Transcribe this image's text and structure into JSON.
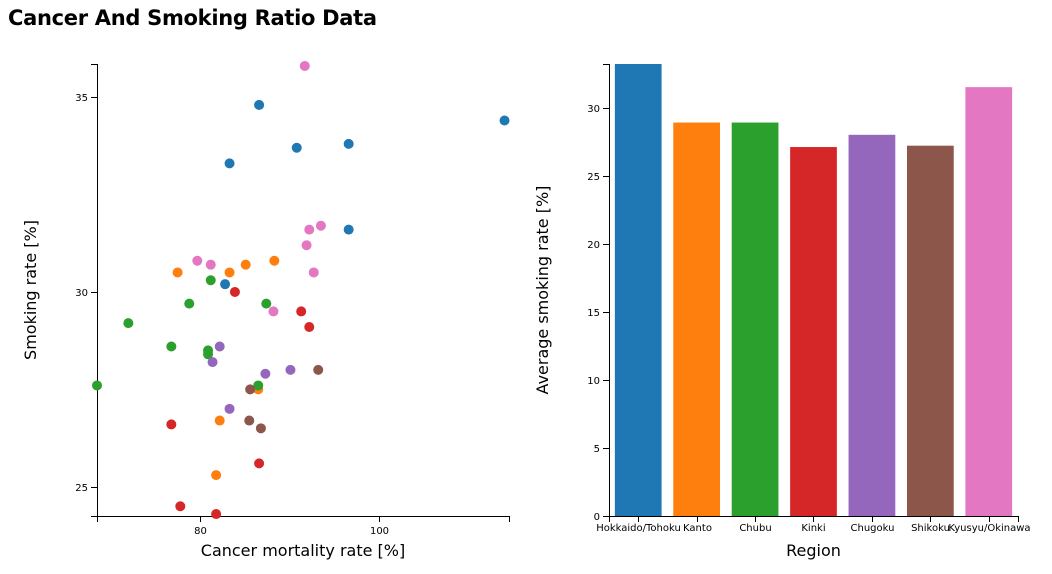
{
  "page": {
    "title": "Cancer And Smoking Ratio Data"
  },
  "chart_data": [
    {
      "type": "scatter",
      "xlabel": "Cancer mortality rate [%]",
      "ylabel": "Smoking rate [%]",
      "xlim": [
        68.5,
        114.5
      ],
      "ylim": [
        24.25,
        35.85
      ],
      "xticks": [
        80,
        100
      ],
      "yticks": [
        25,
        30,
        35
      ],
      "series": [
        {
          "color": "#1f77b4",
          "points": [
            [
              114,
              34.4
            ],
            [
              86.6,
              34.8
            ],
            [
              83.3,
              33.3
            ],
            [
              90.8,
              33.7
            ],
            [
              96.6,
              33.8
            ],
            [
              96.6,
              31.6
            ],
            [
              82.8,
              30.2
            ]
          ]
        },
        {
          "color": "#ff7f0e",
          "points": [
            [
              77.5,
              30.5
            ],
            [
              83.3,
              30.5
            ],
            [
              85.1,
              30.7
            ],
            [
              88.3,
              30.8
            ],
            [
              86.5,
              27.5
            ],
            [
              82.2,
              26.7
            ],
            [
              81.8,
              25.3
            ]
          ]
        },
        {
          "color": "#2ca02c",
          "points": [
            [
              68.5,
              27.6
            ],
            [
              72,
              29.2
            ],
            [
              76.8,
              28.6
            ],
            [
              78.8,
              29.7
            ],
            [
              81.2,
              30.3
            ],
            [
              80.9,
              28.5
            ],
            [
              80.9,
              28.4
            ],
            [
              87.4,
              29.7
            ],
            [
              86.5,
              27.6
            ]
          ]
        },
        {
          "color": "#d62728",
          "points": [
            [
              76.8,
              26.6
            ],
            [
              77.8,
              24.5
            ],
            [
              81.8,
              24.3
            ],
            [
              83.9,
              30
            ],
            [
              86.6,
              25.6
            ],
            [
              91.3,
              29.5
            ],
            [
              92.2,
              29.1
            ]
          ]
        },
        {
          "color": "#9467bd",
          "points": [
            [
              82.2,
              28.6
            ],
            [
              81.4,
              28.2
            ],
            [
              83.3,
              27
            ],
            [
              87.3,
              27.9
            ],
            [
              90.1,
              28
            ]
          ]
        },
        {
          "color": "#8c564b",
          "points": [
            [
              85.6,
              27.5
            ],
            [
              86.8,
              26.5
            ],
            [
              85.5,
              26.7
            ],
            [
              93.2,
              28
            ]
          ]
        },
        {
          "color": "#e377c2",
          "points": [
            [
              91.7,
              35.8
            ],
            [
              79.7,
              30.8
            ],
            [
              81.2,
              30.7
            ],
            [
              88.2,
              29.5
            ],
            [
              92.2,
              31.6
            ],
            [
              93.5,
              31.7
            ],
            [
              91.9,
              31.2
            ],
            [
              92.7,
              30.5
            ]
          ]
        }
      ]
    },
    {
      "type": "bar",
      "xlabel": "Region",
      "ylabel": "Average smoking rate [%]",
      "ylim": [
        0,
        33.2
      ],
      "yticks": [
        0,
        5,
        10,
        15,
        20,
        25,
        30
      ],
      "categories": [
        "Hokkaido/Tohoku",
        "Kanto",
        "Chubu",
        "Kinki",
        "Chugoku",
        "Shikoku",
        "Kyusyu/Okinawa"
      ],
      "values": [
        33.2,
        28.9,
        28.9,
        27.1,
        28,
        27.2,
        31.5
      ],
      "colors": [
        "#1f77b4",
        "#ff7f0e",
        "#2ca02c",
        "#d62728",
        "#9467bd",
        "#8c564b",
        "#e377c2"
      ]
    }
  ]
}
